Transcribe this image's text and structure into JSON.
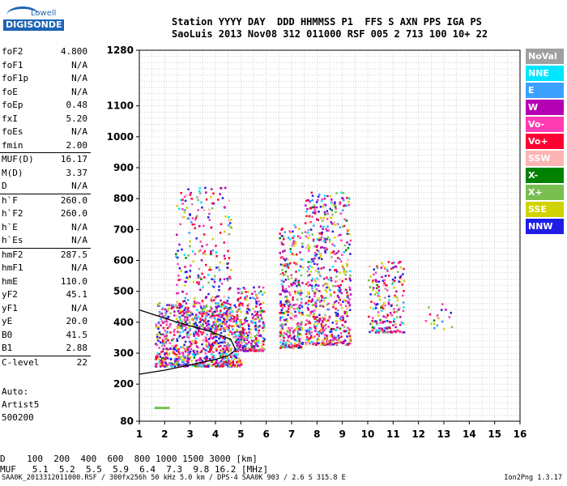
{
  "logo": {
    "line1": "Lowell",
    "line2": "DIGISONDE"
  },
  "header": {
    "line1": "Station YYYY DAY  DDD HHMMSS P1  FFS S AXN PPS IGA PS",
    "line2": "SaoLuis 2013 Nov08 312 011000 RSF 005 2 713 100 10+ 22"
  },
  "params": [
    {
      "k": "foF2",
      "v": "4.800"
    },
    {
      "k": "foF1",
      "v": "N/A"
    },
    {
      "k": "foF1p",
      "v": "N/A"
    },
    {
      "k": "foE",
      "v": "N/A"
    },
    {
      "k": "foEp",
      "v": "0.48"
    },
    {
      "k": "fxI",
      "v": "5.20"
    },
    {
      "k": "foEs",
      "v": "N/A"
    },
    {
      "k": "fmin",
      "v": "2.00"
    },
    {
      "k": "MUF(D)",
      "v": "16.17"
    },
    {
      "k": "M(D)",
      "v": "3.37"
    },
    {
      "k": "D",
      "v": "N/A"
    },
    {
      "k": "h`F",
      "v": "260.0"
    },
    {
      "k": "h`F2",
      "v": "260.0"
    },
    {
      "k": "h`E",
      "v": "N/A"
    },
    {
      "k": "h`Es",
      "v": "N/A"
    },
    {
      "k": "hmF2",
      "v": "287.5"
    },
    {
      "k": "hmF1",
      "v": "N/A"
    },
    {
      "k": "hmE",
      "v": "110.0"
    },
    {
      "k": "yF2",
      "v": "45.1"
    },
    {
      "k": "yF1",
      "v": "N/A"
    },
    {
      "k": "yE",
      "v": "20.0"
    },
    {
      "k": "B0",
      "v": "41.5"
    },
    {
      "k": "B1",
      "v": "2.88"
    },
    {
      "k": "C-level",
      "v": "22"
    }
  ],
  "auto": {
    "l1": "Auto:",
    "l2": "Artist5",
    "l3": "500200"
  },
  "legend": [
    {
      "label": "NoVal",
      "color": "#a0a0a0"
    },
    {
      "label": "NNE",
      "color": "#00e6ff"
    },
    {
      "label": "E",
      "color": "#3ca0ff"
    },
    {
      "label": "W",
      "color": "#b400b4"
    },
    {
      "label": "Vo-",
      "color": "#ff3cb4"
    },
    {
      "label": "Vo+",
      "color": "#ff0032"
    },
    {
      "label": "SSW",
      "color": "#ffb4b4"
    },
    {
      "label": "X-",
      "color": "#008200"
    },
    {
      "label": "X+",
      "color": "#78be50"
    },
    {
      "label": "SSE",
      "color": "#d2d200"
    },
    {
      "label": "NNW",
      "color": "#1e1ee6"
    }
  ],
  "muf": {
    "line1": "D    100  200  400  600  800 1000 1500 3000 [km]",
    "line2": "MUF   5.1  5.2  5.5  5.9  6.4  7.3  9.8 16.2 [MHz]"
  },
  "footer": "SAA0K_2013312011000.RSF / 300fx256h 50 kHz 5.0 km / DPS-4 SAA0K 903 / 2.6 S 315.8 E",
  "version": "Ion2Png 1.3.17",
  "chart_data": {
    "type": "scatter",
    "title": "",
    "xlabel": "",
    "ylabel": "",
    "xlim": [
      1,
      16
    ],
    "ylim": [
      80,
      1280
    ],
    "x_ticks": [
      1,
      2,
      3,
      4,
      5,
      6,
      7,
      8,
      9,
      10,
      11,
      12,
      13,
      14,
      15,
      16
    ],
    "y_ticks": [
      80,
      200,
      300,
      400,
      500,
      600,
      700,
      800,
      900,
      1000,
      1100,
      1280
    ],
    "grid": true,
    "legend_position": "right",
    "traces": [
      {
        "freq_range": [
          1.6,
          5.0
        ],
        "height_range": [
          260,
          470
        ],
        "density": 900
      },
      {
        "freq_range": [
          2.4,
          4.6
        ],
        "height_range": [
          380,
          840
        ],
        "density": 350
      },
      {
        "freq_range": [
          4.8,
          5.9
        ],
        "height_range": [
          310,
          520
        ],
        "density": 260
      },
      {
        "freq_range": [
          6.5,
          7.4
        ],
        "height_range": [
          320,
          720
        ],
        "density": 320
      },
      {
        "freq_range": [
          7.5,
          9.3
        ],
        "height_range": [
          330,
          830
        ],
        "density": 620
      },
      {
        "freq_range": [
          10.0,
          11.4
        ],
        "height_range": [
          370,
          600
        ],
        "density": 200
      },
      {
        "freq_range": [
          12.2,
          13.3
        ],
        "height_range": [
          380,
          470
        ],
        "density": 20
      }
    ],
    "profile_curve": [
      {
        "f": 1.0,
        "h": 232
      },
      {
        "f": 2.0,
        "h": 245
      },
      {
        "f": 3.0,
        "h": 262
      },
      {
        "f": 4.0,
        "h": 280
      },
      {
        "f": 4.5,
        "h": 292
      },
      {
        "f": 4.8,
        "h": 310
      },
      {
        "f": 4.6,
        "h": 345
      },
      {
        "f": 3.8,
        "h": 370
      },
      {
        "f": 2.5,
        "h": 400
      },
      {
        "f": 1.0,
        "h": 440
      }
    ],
    "es_trace": {
      "freq_range": [
        1.6,
        2.2
      ],
      "height": 123,
      "color": "#78be50"
    }
  }
}
